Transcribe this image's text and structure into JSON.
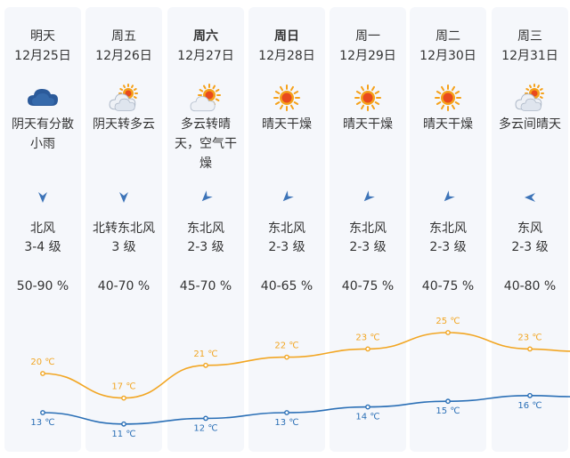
{
  "days": [
    {
      "day": "明天",
      "date": "12月25日",
      "bold": false,
      "weather_icon": "cloud-rain-icon",
      "desc": "阴天有分散小雨",
      "wind_icon": "arrow-down-icon",
      "wind_dir": "北风",
      "wind_level": "3-4 级",
      "humidity": "50-90 %"
    },
    {
      "day": "周五",
      "date": "12月26日",
      "bold": false,
      "weather_icon": "sun-behind-cloud-icon",
      "desc": "阴天转多云",
      "wind_icon": "arrow-down-icon",
      "wind_dir": "北转东北风",
      "wind_level": "3 级",
      "humidity": "40-70 %"
    },
    {
      "day": "周六",
      "date": "12月27日",
      "bold": true,
      "weather_icon": "partly-sunny-icon",
      "desc": "多云转晴天，空气干燥",
      "wind_icon": "arrow-southwest-icon",
      "wind_dir": "东北风",
      "wind_level": "2-3 级",
      "humidity": "45-70 %"
    },
    {
      "day": "周日",
      "date": "12月28日",
      "bold": true,
      "weather_icon": "sun-icon",
      "desc": "晴天干燥",
      "wind_icon": "arrow-southwest-icon",
      "wind_dir": "东北风",
      "wind_level": "2-3 级",
      "humidity": "40-65 %"
    },
    {
      "day": "周一",
      "date": "12月29日",
      "bold": false,
      "weather_icon": "sun-icon",
      "desc": "晴天干燥",
      "wind_icon": "arrow-southwest-icon",
      "wind_dir": "东北风",
      "wind_level": "2-3 级",
      "humidity": "40-75 %"
    },
    {
      "day": "周二",
      "date": "12月30日",
      "bold": false,
      "weather_icon": "sun-icon",
      "desc": "晴天干燥",
      "wind_icon": "arrow-southwest-icon",
      "wind_dir": "东北风",
      "wind_level": "2-3 级",
      "humidity": "40-75 %"
    },
    {
      "day": "周三",
      "date": "12月31日",
      "bold": false,
      "weather_icon": "sun-behind-cloud-icon",
      "desc": "多云间晴天",
      "wind_icon": "arrow-west-icon",
      "wind_dir": "东风",
      "wind_level": "2-3 级",
      "humidity": "40-80 %"
    }
  ],
  "temperatures": {
    "unit": "℃",
    "high": [
      20,
      17,
      21,
      22,
      23,
      25,
      23
    ],
    "low": [
      13,
      11,
      12,
      13,
      14,
      15,
      16
    ],
    "high_color": "#f2a623",
    "low_color": "#2a6fb6"
  },
  "colors": {
    "column_bg": "#f5f7fb",
    "sun": "#f5a11a",
    "sun_core": "#e84a1e",
    "cloud": "#2b5a9a"
  }
}
